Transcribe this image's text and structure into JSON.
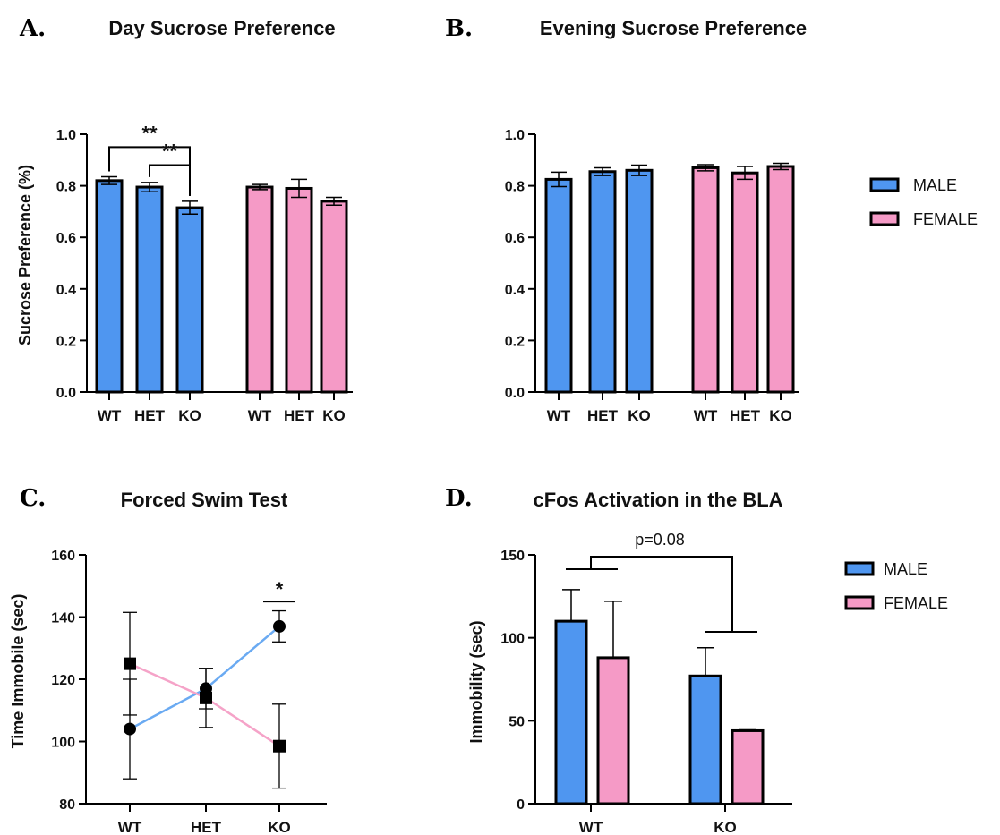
{
  "colors": {
    "male": "#4f96f0",
    "female": "#f59ac6",
    "male_line": "#6aaaf2",
    "female_line": "#f5a3c8",
    "axis": "#000000"
  },
  "legend_top": {
    "male": "MALE",
    "female": "FEMALE"
  },
  "legend_bottom": {
    "male": "MALE",
    "female": "FEMALE"
  },
  "chart_data": [
    {
      "panel": "A.",
      "type": "bar",
      "title": "Day Sucrose Preference",
      "ylabel": "Sucrose Preference (%)",
      "ylim": [
        0,
        1.0
      ],
      "yticks": [
        "0.0",
        "0.2",
        "0.4",
        "0.6",
        "0.8",
        "1.0"
      ],
      "categories": [
        "WT",
        "HET",
        "KO",
        "WT",
        "HET",
        "KO"
      ],
      "groups": [
        "MALE",
        "MALE",
        "MALE",
        "FEMALE",
        "FEMALE",
        "FEMALE"
      ],
      "values": [
        0.82,
        0.795,
        0.715,
        0.795,
        0.79,
        0.74
      ],
      "errors": [
        0.015,
        0.018,
        0.025,
        0.01,
        0.035,
        0.015
      ],
      "significance": [
        {
          "from": 0,
          "to": 2,
          "label": "**",
          "y": 0.95
        },
        {
          "from": 1,
          "to": 2,
          "label": "**",
          "y": 0.88
        }
      ],
      "legend": "right"
    },
    {
      "panel": "B.",
      "type": "bar",
      "title": "Evening Sucrose Preference",
      "ylabel": "",
      "ylim": [
        0,
        1.0
      ],
      "yticks": [
        "0.0",
        "0.2",
        "0.4",
        "0.6",
        "0.8",
        "1.0"
      ],
      "categories": [
        "WT",
        "HET",
        "KO",
        "WT",
        "HET",
        "KO"
      ],
      "groups": [
        "MALE",
        "MALE",
        "MALE",
        "FEMALE",
        "FEMALE",
        "FEMALE"
      ],
      "values": [
        0.825,
        0.855,
        0.86,
        0.87,
        0.85,
        0.875
      ],
      "errors": [
        0.028,
        0.015,
        0.02,
        0.012,
        0.025,
        0.012
      ]
    },
    {
      "panel": "C.",
      "type": "line",
      "title": "Forced Swim Test",
      "ylabel": "Time Immobile (sec)",
      "ylim": [
        80,
        160
      ],
      "yticks": [
        "80",
        "100",
        "120",
        "140",
        "160"
      ],
      "categories": [
        "WT",
        "HET",
        "KO"
      ],
      "series": [
        {
          "group": "MALE",
          "marker": "circle",
          "values": [
            104,
            117,
            137
          ],
          "errors": [
            16,
            6.5,
            5
          ]
        },
        {
          "group": "FEMALE",
          "marker": "square",
          "values": [
            125,
            114,
            98.5
          ],
          "errors": [
            16.5,
            9.5,
            13.5
          ]
        }
      ],
      "significance": [
        {
          "at": 2,
          "label": "*",
          "y": 145
        }
      ]
    },
    {
      "panel": "D.",
      "type": "bar",
      "title": "cFos Activation in the BLA",
      "ylabel": "Immobility (sec)",
      "ylim": [
        0,
        150
      ],
      "yticks": [
        "0",
        "50",
        "100",
        "150"
      ],
      "categories": [
        "WT",
        "KO"
      ],
      "series": [
        {
          "name": "MALE",
          "values": [
            110,
            77
          ],
          "errors": [
            19,
            17
          ]
        },
        {
          "name": "FEMALE",
          "values": [
            88,
            44
          ],
          "errors": [
            34,
            0.5
          ]
        }
      ],
      "annotation": {
        "label": "p=0.08"
      },
      "legend": "right"
    }
  ]
}
